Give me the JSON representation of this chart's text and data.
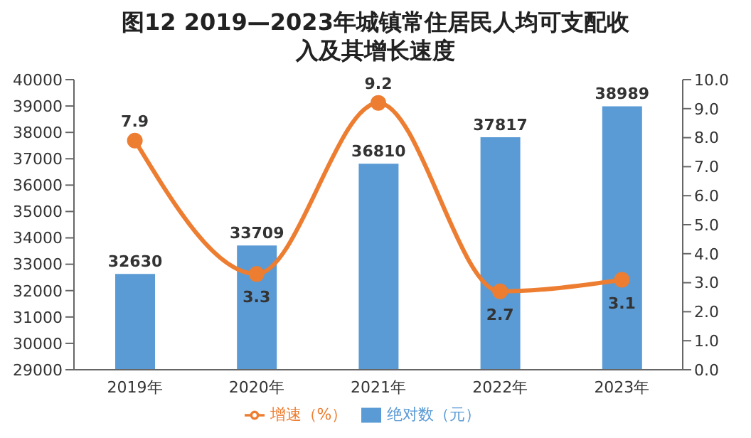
{
  "chart_data": {
    "type": "bar",
    "title": "图12  2019—2023年城镇常住居民人均可支配收入及其增长速度",
    "categories": [
      "2019年",
      "2020年",
      "2021年",
      "2022年",
      "2023年"
    ],
    "series": [
      {
        "name": "绝对数（元）",
        "color": "#5b9bd5",
        "values": [
          32630,
          33709,
          36810,
          37817,
          38989
        ]
      },
      {
        "name": "增速（%）",
        "type": "line",
        "axis": "y2",
        "color": "#ed7d31",
        "values": [
          7.9,
          3.3,
          9.2,
          2.7,
          3.1
        ]
      }
    ],
    "ylim": [
      29000,
      40000
    ],
    "yticks": [
      29000,
      30000,
      31000,
      32000,
      33000,
      34000,
      35000,
      36000,
      37000,
      38000,
      39000,
      40000
    ],
    "y2lim": [
      0,
      10
    ],
    "y2ticks": [
      {
        "value": 0,
        "label": "0.0"
      },
      {
        "value": 1,
        "label": "1.0"
      },
      {
        "value": 2,
        "label": "2.0"
      },
      {
        "value": 3,
        "label": "3.0"
      },
      {
        "value": 4,
        "label": "4.0"
      },
      {
        "value": 5,
        "label": "5.0"
      },
      {
        "value": 6,
        "label": "6.0"
      },
      {
        "value": 7,
        "label": "7.0"
      },
      {
        "value": 8,
        "label": "8.0"
      },
      {
        "value": 9,
        "label": "9.0"
      },
      {
        "value": 10,
        "label": "10.0"
      }
    ],
    "data_labels": true,
    "legend": "bottom",
    "marker": "circle",
    "grid": false
  }
}
